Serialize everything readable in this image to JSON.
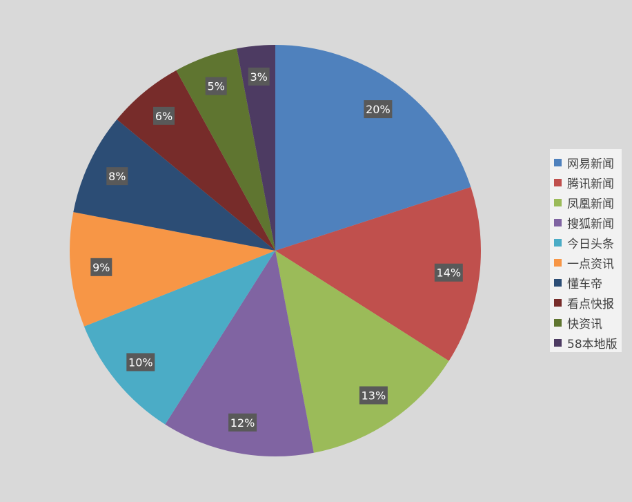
{
  "chart_data": {
    "type": "pie",
    "categories": [
      "网易新闻",
      "腾讯新闻",
      "凤凰新闻",
      "搜狐新闻",
      "今日头条",
      "一点资讯",
      "懂车帝",
      "看点快报",
      "快资讯",
      "58本地版"
    ],
    "values": [
      20,
      14,
      13,
      12,
      10,
      9,
      8,
      6,
      5,
      3
    ],
    "labels": [
      "20%",
      "14%",
      "13%",
      "12%",
      "10%",
      "9%",
      "8%",
      "6%",
      "5%",
      "3%"
    ],
    "colors": [
      "#4f81bd",
      "#c0504d",
      "#9bbb59",
      "#8064a2",
      "#4bacc6",
      "#f79646",
      "#2c4d75",
      "#772c2a",
      "#5f7530",
      "#4d3b62"
    ],
    "legend_position": "right"
  }
}
